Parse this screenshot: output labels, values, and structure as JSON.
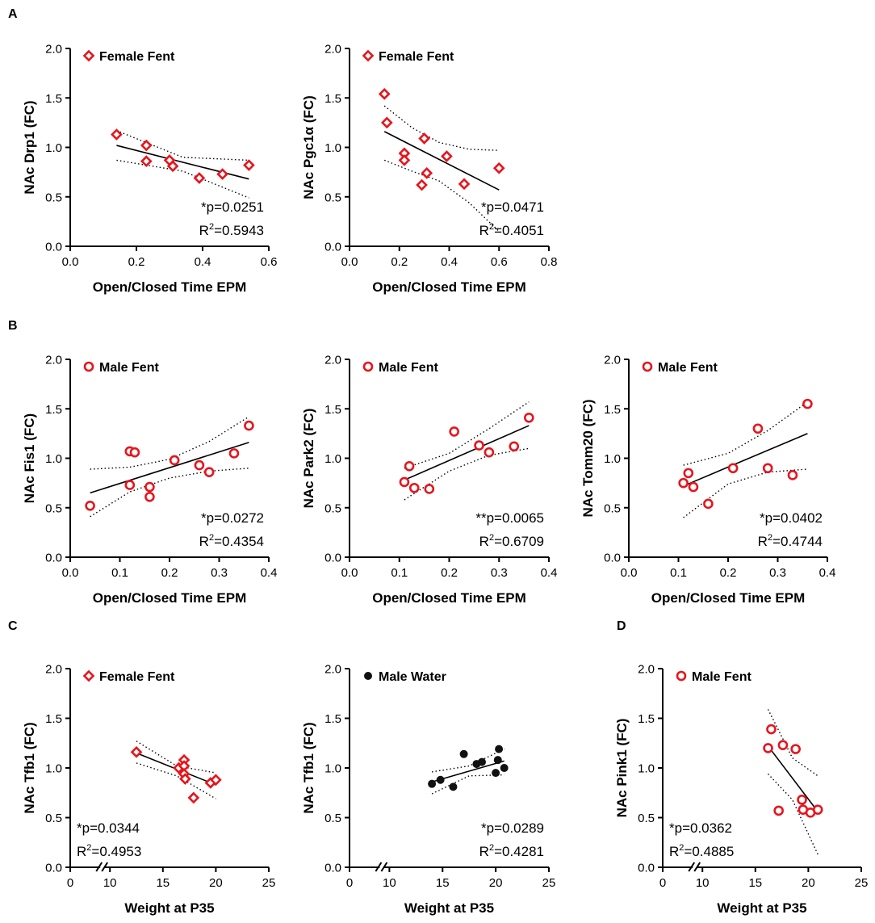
{
  "colors": {
    "red": "#e8141c",
    "black": "#111111"
  },
  "panel_letters": [
    "A",
    "B",
    "C",
    "D"
  ],
  "chart_data": [
    {
      "type": "scatter",
      "panel": "A",
      "marker": "diamond-open",
      "marker_color": "#e8141c",
      "legend": "Female Fent",
      "xlabel": "Open/Closed Time EPM",
      "ylabel": "NAc Drp1 (FC)",
      "xlim": [
        0,
        0.6
      ],
      "ylim": [
        0,
        2.0
      ],
      "xticks": [
        "0.0",
        "0.2",
        "0.4",
        "0.6"
      ],
      "xtick_values": [
        0,
        0.2,
        0.4,
        0.6
      ],
      "yticks": [
        "0.0",
        "0.5",
        "1.0",
        "1.5",
        "2.0"
      ],
      "ytick_values": [
        0,
        0.5,
        1.0,
        1.5,
        2.0
      ],
      "x": [
        0.14,
        0.23,
        0.23,
        0.3,
        0.31,
        0.39,
        0.46,
        0.54
      ],
      "y": [
        1.13,
        1.02,
        0.86,
        0.87,
        0.81,
        0.69,
        0.73,
        0.82
      ],
      "fit": {
        "x": [
          0.14,
          0.54
        ],
        "y": [
          1.02,
          0.68
        ]
      },
      "ci_upper": [
        [
          0.14,
          1.17
        ],
        [
          0.34,
          0.9
        ],
        [
          0.54,
          0.87
        ]
      ],
      "ci_lower": [
        [
          0.14,
          0.87
        ],
        [
          0.34,
          0.76
        ],
        [
          0.54,
          0.49
        ]
      ],
      "stat_p": "*p=0.0251",
      "stat_r2": "0.5943"
    },
    {
      "type": "scatter",
      "panel": "A",
      "marker": "diamond-open",
      "marker_color": "#e8141c",
      "legend": "Female Fent",
      "xlabel": "Open/Closed Time EPM",
      "ylabel": "NAc Pgc1α (FC)",
      "xlim": [
        0,
        0.8
      ],
      "ylim": [
        0,
        2.0
      ],
      "xticks": [
        "0.0",
        "0.2",
        "0.4",
        "0.6",
        "0.8"
      ],
      "xtick_values": [
        0,
        0.2,
        0.4,
        0.6,
        0.8
      ],
      "yticks": [
        "0.0",
        "0.5",
        "1.0",
        "1.5",
        "2.0"
      ],
      "ytick_values": [
        0,
        0.5,
        1.0,
        1.5,
        2.0
      ],
      "x": [
        0.14,
        0.15,
        0.22,
        0.22,
        0.29,
        0.3,
        0.31,
        0.39,
        0.46,
        0.6
      ],
      "y": [
        1.54,
        1.25,
        0.94,
        0.87,
        0.62,
        1.09,
        0.74,
        0.91,
        0.63,
        0.79
      ],
      "fit": {
        "x": [
          0.14,
          0.6
        ],
        "y": [
          1.16,
          0.57
        ]
      },
      "ci_upper": [
        [
          0.14,
          1.42
        ],
        [
          0.25,
          1.2
        ],
        [
          0.36,
          1.05
        ],
        [
          0.48,
          0.98
        ],
        [
          0.6,
          0.97
        ]
      ],
      "ci_lower": [
        [
          0.14,
          0.87
        ],
        [
          0.25,
          0.76
        ],
        [
          0.36,
          0.66
        ],
        [
          0.48,
          0.44
        ],
        [
          0.6,
          0.15
        ]
      ],
      "stat_p": "*p=0.0471",
      "stat_r2": "0.4051"
    },
    {
      "type": "scatter",
      "panel": "B",
      "marker": "circle-open",
      "marker_color": "#e8141c",
      "legend": "Male Fent",
      "xlabel": "Open/Closed Time EPM",
      "ylabel": "NAc Fis1 (FC)",
      "xlim": [
        0,
        0.4
      ],
      "ylim": [
        0,
        2.0
      ],
      "xticks": [
        "0.0",
        "0.1",
        "0.2",
        "0.3",
        "0.4"
      ],
      "xtick_values": [
        0,
        0.1,
        0.2,
        0.3,
        0.4
      ],
      "yticks": [
        "0.0",
        "0.5",
        "1.0",
        "1.5",
        "2.0"
      ],
      "ytick_values": [
        0,
        0.5,
        1.0,
        1.5,
        2.0
      ],
      "x": [
        0.04,
        0.12,
        0.12,
        0.13,
        0.16,
        0.16,
        0.21,
        0.26,
        0.28,
        0.33,
        0.36
      ],
      "y": [
        0.52,
        0.73,
        1.07,
        1.06,
        0.71,
        0.61,
        0.98,
        0.93,
        0.86,
        1.05,
        1.33
      ],
      "fit": {
        "x": [
          0.04,
          0.36
        ],
        "y": [
          0.65,
          1.16
        ]
      },
      "ci_upper": [
        [
          0.04,
          0.89
        ],
        [
          0.12,
          0.91
        ],
        [
          0.2,
          0.99
        ],
        [
          0.28,
          1.17
        ],
        [
          0.36,
          1.42
        ]
      ],
      "ci_lower": [
        [
          0.04,
          0.41
        ],
        [
          0.12,
          0.66
        ],
        [
          0.2,
          0.8
        ],
        [
          0.28,
          0.87
        ],
        [
          0.36,
          0.9
        ]
      ],
      "stat_p": "*p=0.0272",
      "stat_r2": "0.4354"
    },
    {
      "type": "scatter",
      "panel": "B",
      "marker": "circle-open",
      "marker_color": "#e8141c",
      "legend": "Male Fent",
      "xlabel": "Open/Closed Time EPM",
      "ylabel": "NAc Park2 (FC)",
      "xlim": [
        0,
        0.4
      ],
      "ylim": [
        0,
        2.0
      ],
      "xticks": [
        "0.0",
        "0.1",
        "0.2",
        "0.3",
        "0.4"
      ],
      "xtick_values": [
        0,
        0.1,
        0.2,
        0.3,
        0.4
      ],
      "yticks": [
        "0.0",
        "0.5",
        "1.0",
        "1.5",
        "2.0"
      ],
      "ytick_values": [
        0,
        0.5,
        1.0,
        1.5,
        2.0
      ],
      "x": [
        0.11,
        0.12,
        0.13,
        0.16,
        0.21,
        0.26,
        0.28,
        0.33,
        0.36
      ],
      "y": [
        0.76,
        0.92,
        0.7,
        0.69,
        1.27,
        1.13,
        1.06,
        1.12,
        1.41
      ],
      "fit": {
        "x": [
          0.11,
          0.36
        ],
        "y": [
          0.78,
          1.33
        ]
      },
      "ci_upper": [
        [
          0.11,
          0.9
        ],
        [
          0.2,
          1.05
        ],
        [
          0.28,
          1.3
        ],
        [
          0.36,
          1.57
        ]
      ],
      "ci_lower": [
        [
          0.11,
          0.58
        ],
        [
          0.2,
          0.87
        ],
        [
          0.28,
          1.03
        ],
        [
          0.36,
          1.1
        ]
      ],
      "stat_p": "**p=0.0065",
      "stat_r2": "0.6709"
    },
    {
      "type": "scatter",
      "panel": "B",
      "marker": "circle-open",
      "marker_color": "#e8141c",
      "legend": "Male Fent",
      "xlabel": "Open/Closed Time EPM",
      "ylabel": "NAc Tomm20 (FC)",
      "xlim": [
        0,
        0.4
      ],
      "ylim": [
        0,
        2.0
      ],
      "xticks": [
        "0.0",
        "0.1",
        "0.2",
        "0.3",
        "0.4"
      ],
      "xtick_values": [
        0,
        0.1,
        0.2,
        0.3,
        0.4
      ],
      "yticks": [
        "0.0",
        "0.5",
        "1.0",
        "1.5",
        "2.0"
      ],
      "ytick_values": [
        0,
        0.5,
        1.0,
        1.5,
        2.0
      ],
      "x": [
        0.11,
        0.12,
        0.13,
        0.16,
        0.21,
        0.26,
        0.28,
        0.33,
        0.36
      ],
      "y": [
        0.75,
        0.85,
        0.71,
        0.54,
        0.9,
        1.3,
        0.9,
        0.83,
        1.55
      ],
      "fit": {
        "x": [
          0.11,
          0.36
        ],
        "y": [
          0.72,
          1.25
        ]
      },
      "ci_upper": [
        [
          0.11,
          0.93
        ],
        [
          0.2,
          1.05
        ],
        [
          0.28,
          1.28
        ],
        [
          0.36,
          1.57
        ]
      ],
      "ci_lower": [
        [
          0.11,
          0.4
        ],
        [
          0.2,
          0.74
        ],
        [
          0.28,
          0.86
        ],
        [
          0.36,
          0.89
        ]
      ],
      "stat_p": "*p=0.0402",
      "stat_r2": "0.4744"
    },
    {
      "type": "scatter",
      "panel": "C",
      "marker": "diamond-open",
      "marker_color": "#e8141c",
      "legend": "Female Fent",
      "xlabel": "Weight at P35",
      "ylabel": "NAc Tfb1  (FC)",
      "xlim": [
        0,
        25
      ],
      "ylim": [
        0,
        2.0
      ],
      "axis_break": true,
      "xticks": [
        "0",
        "10",
        "15",
        "20",
        "25"
      ],
      "xtick_values": [
        0,
        10,
        15,
        20,
        25
      ],
      "yticks": [
        "0.0",
        "0.5",
        "1.0",
        "1.5",
        "2.0"
      ],
      "ytick_values": [
        0,
        0.5,
        1.0,
        1.5,
        2.0
      ],
      "x": [
        12.5,
        16.5,
        17.0,
        17.0,
        17.0,
        17.1,
        17.9,
        19.5,
        20.0
      ],
      "y": [
        1.16,
        1.0,
        1.08,
        1.02,
        0.94,
        0.89,
        0.7,
        0.85,
        0.88
      ],
      "fit": {
        "x": [
          12.5,
          20.0
        ],
        "y": [
          1.15,
          0.83
        ]
      },
      "ci_upper": [
        [
          12.5,
          1.27
        ],
        [
          16.3,
          1.02
        ],
        [
          20.0,
          0.95
        ]
      ],
      "ci_lower": [
        [
          12.5,
          1.05
        ],
        [
          16.3,
          0.92
        ],
        [
          20.0,
          0.69
        ]
      ],
      "stat_p": "*p=0.0344",
      "stat_r2": "0.4953"
    },
    {
      "type": "scatter",
      "panel": "C",
      "marker": "circle-filled",
      "marker_color": "#111111",
      "legend": "Male Water",
      "xlabel": "Weight at P35",
      "ylabel": "NAc Tfb1 (FC)",
      "xlim": [
        0,
        25
      ],
      "ylim": [
        0,
        2.0
      ],
      "axis_break": true,
      "xticks": [
        "0",
        "10",
        "15",
        "20",
        "25"
      ],
      "xtick_values": [
        0,
        10,
        15,
        20,
        25
      ],
      "yticks": [
        "0.0",
        "0.5",
        "1.0",
        "1.5",
        "2.0"
      ],
      "ytick_values": [
        0,
        0.5,
        1.0,
        1.5,
        2.0
      ],
      "x": [
        14.0,
        14.8,
        16.0,
        17.0,
        18.2,
        18.7,
        20.0,
        20.2,
        20.3,
        20.8
      ],
      "y": [
        0.84,
        0.88,
        0.81,
        1.14,
        1.04,
        1.06,
        0.95,
        1.08,
        1.19,
        1.0
      ],
      "fit": {
        "x": [
          14.0,
          20.8
        ],
        "y": [
          0.86,
          1.07
        ]
      },
      "ci_upper": [
        [
          14.0,
          0.96
        ],
        [
          17.5,
          1.02
        ],
        [
          20.8,
          1.19
        ]
      ],
      "ci_lower": [
        [
          14.0,
          0.74
        ],
        [
          17.5,
          0.92
        ],
        [
          20.8,
          0.93
        ]
      ],
      "stat_p": "*p=0.0289",
      "stat_r2": "0.4281"
    },
    {
      "type": "scatter",
      "panel": "D",
      "marker": "circle-open",
      "marker_color": "#e8141c",
      "legend": "Male Fent",
      "xlabel": "Weight at P35",
      "ylabel": "NAc Pink1 (FC)",
      "xlim": [
        0,
        25
      ],
      "ylim": [
        0,
        2.0
      ],
      "axis_break": true,
      "xticks": [
        "0",
        "10",
        "15",
        "20",
        "25"
      ],
      "xtick_values": [
        0,
        10,
        15,
        20,
        25
      ],
      "yticks": [
        "0.0",
        "0.5",
        "1.0",
        "1.5",
        "2.0"
      ],
      "ytick_values": [
        0,
        0.5,
        1.0,
        1.5,
        2.0
      ],
      "x": [
        16.2,
        16.5,
        17.2,
        17.6,
        18.8,
        19.4,
        19.5,
        20.2,
        20.9
      ],
      "y": [
        1.2,
        1.39,
        0.57,
        1.23,
        1.19,
        0.68,
        0.58,
        0.55,
        0.58
      ],
      "fit": {
        "x": [
          16.2,
          20.9
        ],
        "y": [
          1.22,
          0.56
        ]
      },
      "ci_upper": [
        [
          16.2,
          1.59
        ],
        [
          18.5,
          1.1
        ],
        [
          20.9,
          0.92
        ]
      ],
      "ci_lower": [
        [
          16.2,
          0.94
        ],
        [
          18.5,
          0.68
        ],
        [
          20.9,
          0.13
        ]
      ],
      "stat_p": "*p=0.0362",
      "stat_r2": "0.4885"
    }
  ]
}
